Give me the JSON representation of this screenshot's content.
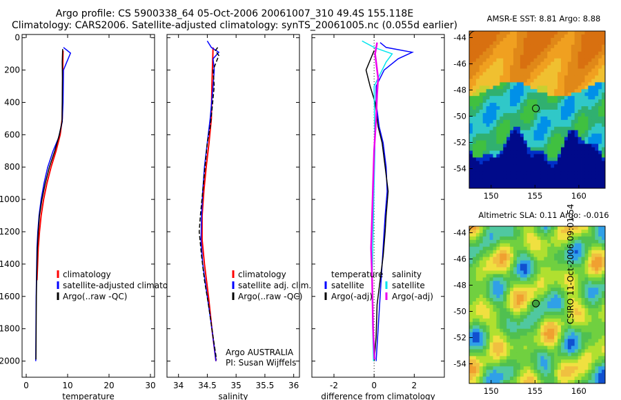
{
  "header": {
    "line1": "Argo profile: CS 5900338_64 05-Oct-2006 20061007_310 49.4S 155.118E",
    "line2": "Climatology: CARS2006. Satellite-adjusted climatology: synTS_20061005.nc (0.055d earlier)"
  },
  "credit": "CSIRO 11-Oct-2006 09:01:54",
  "colors": {
    "climatology": "#ff0000",
    "satellite": "#0000ff",
    "argo": "#000000",
    "sal_satellite": "#00e5ee",
    "sal_argo": "#ee00ee"
  },
  "chart_data": [
    {
      "type": "line",
      "name": "temperature",
      "xlabel": "temperature",
      "xlim": [
        -1,
        31
      ],
      "ylim": [
        2100,
        -20
      ],
      "xticks": [
        0,
        10,
        20,
        30
      ],
      "yticks": [
        0,
        200,
        400,
        600,
        800,
        1000,
        1200,
        1400,
        1600,
        1800,
        2000
      ],
      "legend": [
        {
          "label": "climatology",
          "color": "#ff0000"
        },
        {
          "label": "satellite-adjusted climatology",
          "color": "#0000ff"
        },
        {
          "label": "Argo(..raw -QC)",
          "color": "#000000"
        }
      ],
      "series": [
        {
          "name": "climatology",
          "color": "#ff0000",
          "width": 2,
          "points": [
            [
              8.9,
              80
            ],
            [
              8.85,
              150
            ],
            [
              8.8,
              300
            ],
            [
              8.7,
              500
            ],
            [
              8.2,
              600
            ],
            [
              7.2,
              700
            ],
            [
              6.0,
              800
            ],
            [
              5.0,
              900
            ],
            [
              4.2,
              1000
            ],
            [
              3.6,
              1100
            ],
            [
              3.2,
              1200
            ],
            [
              2.9,
              1300
            ],
            [
              2.75,
              1400
            ],
            [
              2.6,
              1500
            ]
          ]
        },
        {
          "name": "satellite",
          "color": "#0000ff",
          "width": 1.5,
          "points": [
            [
              9.0,
              60
            ],
            [
              10.7,
              95
            ],
            [
              9.8,
              150
            ],
            [
              9.0,
              200
            ],
            [
              8.9,
              400
            ],
            [
              8.7,
              520
            ],
            [
              7.8,
              620
            ],
            [
              6.5,
              700
            ],
            [
              5.2,
              800
            ],
            [
              4.3,
              900
            ],
            [
              3.6,
              1000
            ],
            [
              3.1,
              1100
            ],
            [
              2.8,
              1200
            ],
            [
              2.6,
              1300
            ],
            [
              2.5,
              1450
            ],
            [
              2.4,
              1600
            ],
            [
              2.35,
              1800
            ],
            [
              2.3,
              2000
            ]
          ]
        },
        {
          "name": "argo",
          "color": "#000000",
          "width": 1.5,
          "points": [
            [
              8.8,
              70
            ],
            [
              8.7,
              150
            ],
            [
              8.75,
              250
            ],
            [
              8.7,
              400
            ],
            [
              8.65,
              520
            ],
            [
              8.0,
              600
            ],
            [
              6.9,
              700
            ],
            [
              5.6,
              800
            ],
            [
              4.6,
              900
            ],
            [
              3.8,
              1000
            ],
            [
              3.2,
              1100
            ],
            [
              2.9,
              1200
            ],
            [
              2.7,
              1300
            ],
            [
              2.55,
              1450
            ],
            [
              2.45,
              1600
            ],
            [
              2.4,
              1800
            ],
            [
              2.35,
              1990
            ]
          ]
        }
      ]
    },
    {
      "type": "line",
      "name": "salinity",
      "xlabel": "salinity",
      "xlim": [
        33.8,
        36.1
      ],
      "ylim": [
        2100,
        -20
      ],
      "xticks": [
        34,
        34.5,
        35,
        35.5,
        36
      ],
      "annotation": [
        "Argo AUSTRALIA",
        "PI: Susan Wijffels"
      ],
      "legend": [
        {
          "label": "climatology",
          "color": "#ff0000"
        },
        {
          "label": "satellite adj. clim.",
          "color": "#0000ff"
        },
        {
          "label": "Argo(..raw -QC)",
          "color": "#000000"
        }
      ],
      "series": [
        {
          "name": "climatology",
          "color": "#ff0000",
          "width": 2,
          "points": [
            [
              34.6,
              60
            ],
            [
              34.58,
              300
            ],
            [
              34.57,
              500
            ],
            [
              34.53,
              650
            ],
            [
              34.48,
              800
            ],
            [
              34.44,
              950
            ],
            [
              34.41,
              1100
            ],
            [
              34.41,
              1250
            ],
            [
              34.45,
              1400
            ],
            [
              34.52,
              1600
            ],
            [
              34.58,
              1800
            ],
            [
              34.65,
              2000
            ]
          ]
        },
        {
          "name": "satellite",
          "color": "#0000ff",
          "width": 1.5,
          "points": [
            [
              34.5,
              20
            ],
            [
              34.57,
              60
            ],
            [
              34.7,
              90
            ],
            [
              34.6,
              130
            ],
            [
              34.62,
              200
            ],
            [
              34.6,
              300
            ],
            [
              34.55,
              500
            ],
            [
              34.5,
              650
            ],
            [
              34.45,
              800
            ],
            [
              34.42,
              950
            ],
            [
              34.4,
              1100
            ],
            [
              34.39,
              1250
            ],
            [
              34.42,
              1400
            ],
            [
              34.5,
              1600
            ],
            [
              34.58,
              1800
            ],
            [
              34.65,
              2000
            ]
          ]
        },
        {
          "name": "argo",
          "color": "#000000",
          "width": 1.5,
          "points": [
            [
              34.68,
              60
            ],
            [
              34.64,
              80
            ],
            [
              34.7,
              110
            ],
            [
              34.6,
              200
            ],
            [
              34.62,
              300
            ],
            [
              34.58,
              450
            ],
            [
              34.55,
              550
            ],
            [
              34.5,
              650
            ],
            [
              34.46,
              800
            ],
            [
              34.42,
              950
            ],
            [
              34.38,
              1100
            ],
            [
              34.36,
              1200
            ],
            [
              34.4,
              1350
            ],
            [
              34.45,
              1500
            ],
            [
              34.52,
              1650
            ],
            [
              34.6,
              1850
            ],
            [
              34.66,
              1990
            ]
          ]
        }
      ]
    },
    {
      "type": "line",
      "name": "difference",
      "xlabel": "difference from climatology",
      "xlim": [
        -3.1,
        3.5
      ],
      "ylim": [
        2100,
        -20
      ],
      "xticks": [
        -2,
        0,
        2
      ],
      "legend": [
        {
          "label": "temperature",
          "color": "",
          "col": 0
        },
        {
          "label": "satellite",
          "color": "#0000ff",
          "col": 0
        },
        {
          "label": "Argo(-adj)",
          "color": "#000000",
          "col": 0
        },
        {
          "label": "salinity",
          "color": "",
          "col": 1
        },
        {
          "label": "satellite",
          "color": "#00e5ee",
          "col": 1
        },
        {
          "label": "Argo(-adj)",
          "color": "#ee00ee",
          "col": 1
        }
      ],
      "series": [
        {
          "name": "temperature satellite",
          "color": "#0000ff",
          "width": 1.5,
          "points": [
            [
              0.3,
              30
            ],
            [
              0.6,
              60
            ],
            [
              1.9,
              90
            ],
            [
              1.2,
              130
            ],
            [
              0.5,
              200
            ],
            [
              0.1,
              300
            ],
            [
              0.1,
              400
            ],
            [
              0.25,
              550
            ],
            [
              0.45,
              650
            ],
            [
              0.6,
              800
            ],
            [
              0.65,
              950
            ],
            [
              0.55,
              1100
            ],
            [
              0.5,
              1200
            ],
            [
              0.4,
              1400
            ],
            [
              0.3,
              1600
            ],
            [
              0.2,
              1800
            ],
            [
              0.1,
              2000
            ]
          ]
        },
        {
          "name": "temperature argo",
          "color": "#000000",
          "width": 1.5,
          "points": [
            [
              0.0,
              80
            ],
            [
              -0.4,
              200
            ],
            [
              -0.2,
              300
            ],
            [
              0.05,
              400
            ],
            [
              0.2,
              550
            ],
            [
              0.4,
              650
            ],
            [
              0.55,
              800
            ],
            [
              0.7,
              950
            ],
            [
              0.6,
              1100
            ],
            [
              0.55,
              1200
            ],
            [
              0.45,
              1350
            ],
            [
              0.3,
              1500
            ],
            [
              0.15,
              1650
            ],
            [
              0.1,
              1850
            ],
            [
              0.0,
              2000
            ]
          ]
        },
        {
          "name": "salinity satellite",
          "color": "#00e5ee",
          "width": 1.5,
          "points": [
            [
              -0.6,
              20
            ],
            [
              0.0,
              60
            ],
            [
              0.9,
              100
            ],
            [
              0.6,
              150
            ],
            [
              0.0,
              300
            ],
            [
              0.02,
              500
            ],
            [
              0.04,
              700
            ],
            [
              0.0,
              900
            ],
            [
              -0.05,
              1200
            ],
            [
              -0.1,
              1500
            ],
            [
              -0.07,
              1800
            ],
            [
              -0.03,
              2000
            ]
          ]
        },
        {
          "name": "salinity argo",
          "color": "#ee00ee",
          "width": 2.5,
          "points": [
            [
              0.15,
              30
            ],
            [
              0.05,
              100
            ],
            [
              0.2,
              250
            ],
            [
              0.15,
              350
            ],
            [
              0.1,
              500
            ],
            [
              0.0,
              700
            ],
            [
              -0.05,
              900
            ],
            [
              -0.1,
              1100
            ],
            [
              -0.15,
              1300
            ],
            [
              -0.1,
              1500
            ],
            [
              -0.05,
              1800
            ],
            [
              0.02,
              1990
            ]
          ]
        }
      ]
    },
    {
      "type": "heatmap",
      "name": "sst-map",
      "title": "AMSR-E SST: 8.81 Argo: 8.88",
      "xlim": [
        147.5,
        163
      ],
      "ylim": [
        -55.5,
        -43.5
      ],
      "xticks": [
        150,
        155,
        160
      ],
      "yticks": [
        -44,
        -46,
        -48,
        -50,
        -52,
        -54
      ],
      "marker": [
        155.1,
        -49.4
      ]
    },
    {
      "type": "heatmap",
      "name": "sla-map",
      "title": "Altimetric SLA: 0.11 Argo: -0.016",
      "xlim": [
        147.5,
        163
      ],
      "ylim": [
        -55.5,
        -43.5
      ],
      "xticks": [
        150,
        155,
        160
      ],
      "yticks": [
        -44,
        -46,
        -48,
        -50,
        -52,
        -54
      ],
      "marker": [
        155.1,
        -49.4
      ]
    }
  ]
}
